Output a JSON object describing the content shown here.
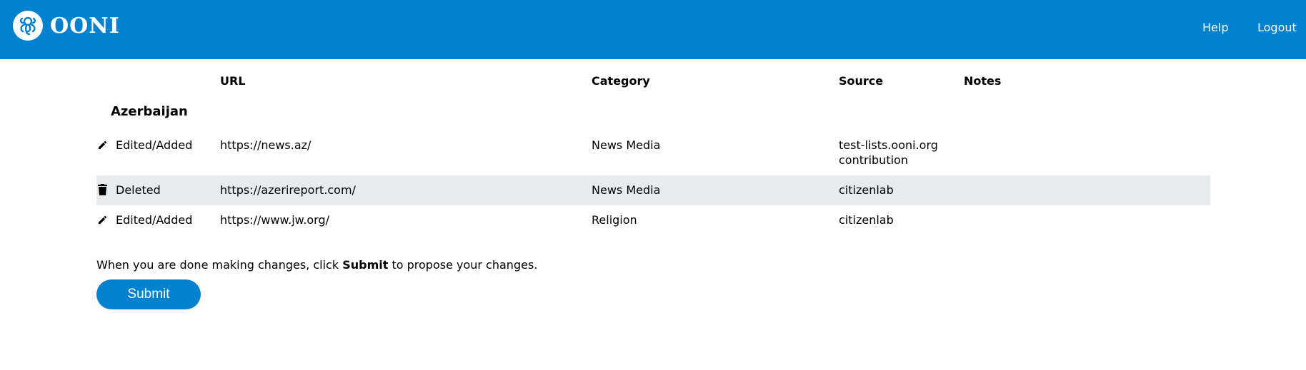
{
  "header": {
    "brand": "OONI",
    "nav": {
      "help": "Help",
      "logout": "Logout"
    },
    "color": "#0281cf"
  },
  "table": {
    "columns": {
      "url": "URL",
      "category": "Category",
      "source": "Source",
      "notes": "Notes"
    },
    "country": "Azerbaijan",
    "rows": [
      {
        "icon": "pencil-icon",
        "action": "Edited/Added",
        "url": "https://news.az/",
        "category": "News Media",
        "source_line1": "test-lists.ooni.org",
        "source_line2": "contribution",
        "notes": ""
      },
      {
        "icon": "trash-icon",
        "action": "Deleted",
        "url": "https://azerireport.com/",
        "category": "News Media",
        "source_line1": "citizenlab",
        "notes": ""
      },
      {
        "icon": "pencil-icon",
        "action": "Edited/Added",
        "url": "https://www.jw.org/",
        "category": "Religion",
        "source_line1": "citizenlab",
        "notes": ""
      }
    ]
  },
  "footer": {
    "text_before": "When you are done making changes, click ",
    "text_bold": "Submit",
    "text_after": " to propose your changes.",
    "submit_label": "Submit"
  }
}
